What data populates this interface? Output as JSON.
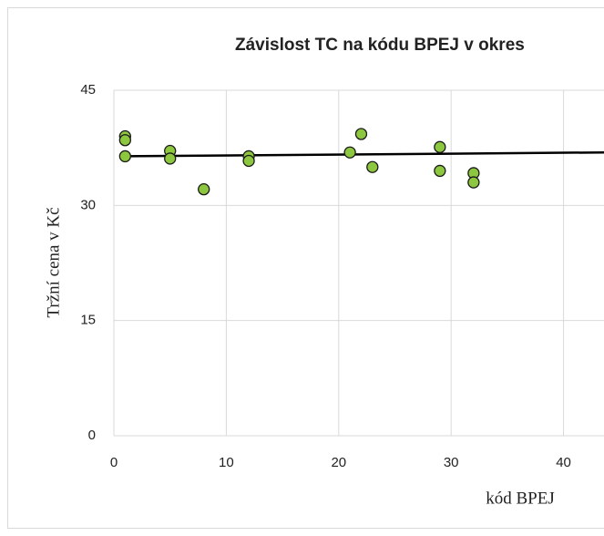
{
  "chart_data": {
    "type": "scatter",
    "title": "Závislost TC na kódu BPEJ v okres",
    "x_label": "kód BPEJ",
    "y_label": "Tržní cena v Kč",
    "x": [
      1,
      1,
      1,
      5,
      5,
      8,
      12,
      12,
      21,
      22,
      23,
      29,
      29,
      32,
      32
    ],
    "values": [
      39.0,
      38.5,
      36.4,
      37.1,
      36.1,
      32.1,
      36.4,
      35.8,
      36.9,
      39.3,
      35.0,
      37.6,
      34.5,
      34.2,
      33.0
    ],
    "color": "#8dc63f",
    "trendline": {
      "x": [
        1,
        43.6
      ],
      "y": [
        36.4,
        36.9
      ],
      "color": "#000000"
    },
    "xlim": [
      0,
      43.6
    ],
    "xticks": [
      0,
      10,
      20,
      30,
      40
    ],
    "ylim": [
      0,
      45
    ],
    "yticks": [
      0,
      15,
      30,
      45
    ],
    "grid": true
  }
}
